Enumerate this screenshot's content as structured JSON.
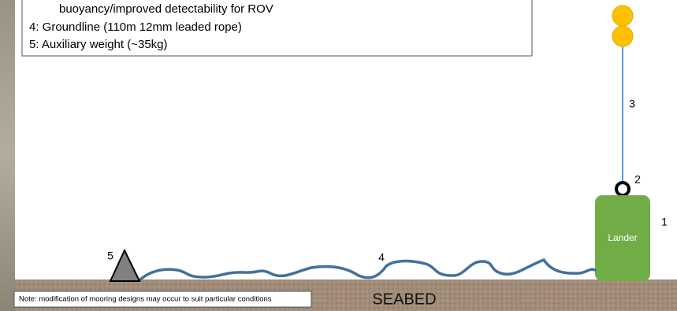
{
  "legend": {
    "lines": [
      "buoyancy/improved detectability for ROV",
      "4: Groundline (110m 12mm leaded rope)",
      "5: Auxiliary weight (~35kg)"
    ]
  },
  "labels": {
    "lander_number": "1",
    "ring_number": "2",
    "rope_number": "3",
    "groundline_number": "4",
    "weight_number": "5",
    "lander": "Lander",
    "seabed": "SEABED"
  },
  "note": "Note: modification of mooring designs may occur to suit particular conditions"
}
